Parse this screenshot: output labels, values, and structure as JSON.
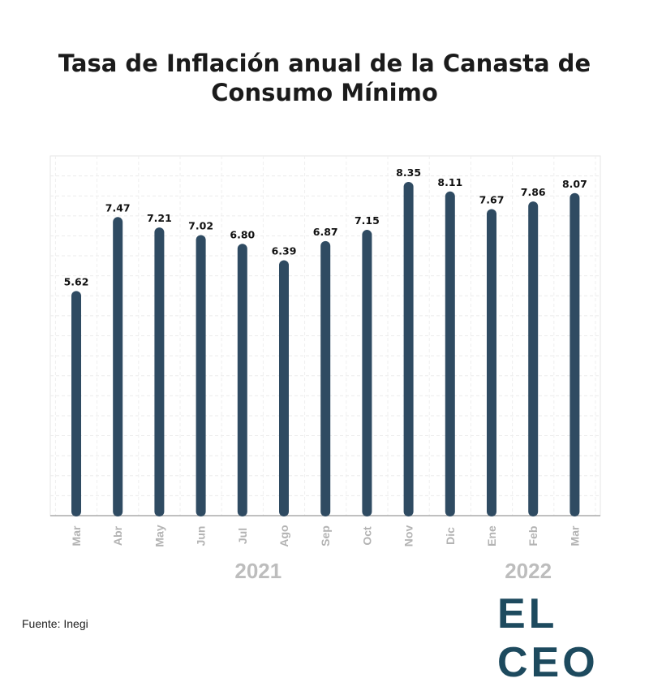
{
  "chart_data": {
    "type": "bar",
    "title_lines": [
      "Tasa de Inflación anual de la Canasta de",
      "Consumo Mínimo"
    ],
    "categories": [
      "Mar",
      "Abr",
      "May",
      "Jun",
      "Jul",
      "Ago",
      "Sep",
      "Oct",
      "Nov",
      "Dic",
      "Ene",
      "Feb",
      "Mar"
    ],
    "values": [
      5.62,
      7.47,
      7.21,
      7.02,
      6.8,
      6.39,
      6.87,
      7.15,
      8.35,
      8.11,
      7.67,
      7.86,
      8.07
    ],
    "value_labels": [
      "5.62",
      "7.47",
      "7.21",
      "7.02",
      "6.80",
      "6.39",
      "6.87",
      "7.15",
      "8.35",
      "8.11",
      "7.67",
      "7.86",
      "8.07"
    ],
    "year_groups": [
      {
        "label": "2021",
        "categories": [
          "Mar",
          "Abr",
          "May",
          "Jun",
          "Jul",
          "Ago",
          "Sep",
          "Oct",
          "Nov",
          "Dic"
        ]
      },
      {
        "label": "2022",
        "categories": [
          "Ene",
          "Feb",
          "Mar"
        ]
      }
    ],
    "ylim": [
      0,
      9
    ],
    "grid": true,
    "bar_color": "#2f4b62"
  },
  "footer": {
    "source": "Fuente: Inegi",
    "logo_text": "EL CEO",
    "logo_color": "#1d4a5e"
  }
}
